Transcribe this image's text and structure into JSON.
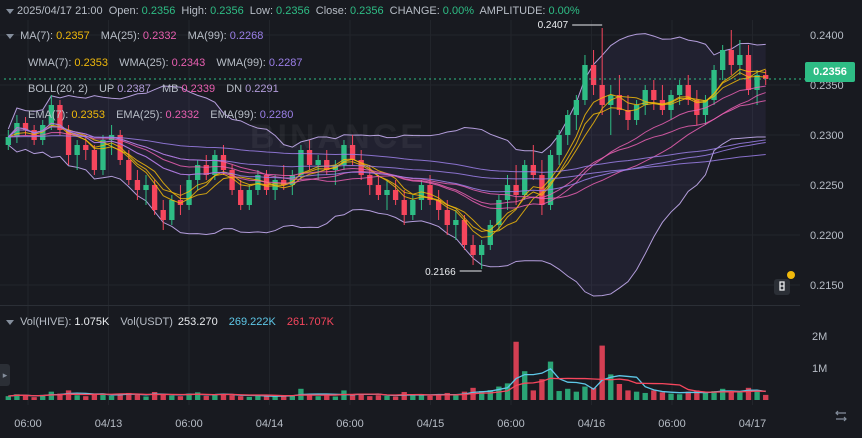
{
  "ohlc_legend": {
    "date": "2025/04/17 21:00",
    "open_label": "Open:",
    "open": "0.2356",
    "high_label": "High:",
    "high": "0.2356",
    "low_label": "Low:",
    "low": "0.2356",
    "close_label": "Close:",
    "close": "0.2356",
    "change_label": "CHANGE:",
    "change": "0.00%",
    "amplitude_label": "AMPLITUDE:",
    "amplitude": "0.00%"
  },
  "ma_legend": {
    "ma7_label": "MA(7):",
    "ma7": "0.2357",
    "ma25_label": "MA(25):",
    "ma25": "0.2332",
    "ma99_label": "MA(99):",
    "ma99": "0.2268"
  },
  "wma_legend": {
    "wma7_label": "WMA(7):",
    "wma7": "0.2353",
    "wma25_label": "WMA(25):",
    "wma25": "0.2343",
    "wma99_label": "WMA(99):",
    "wma99": "0.2287"
  },
  "boll_legend": {
    "boll_label": "BOLL(20, 2)",
    "up_label": "UP",
    "up": "0.2387",
    "mb_label": "MB",
    "mb": "0.2339",
    "dn_label": "DN",
    "dn": "0.2291"
  },
  "ema_legend": {
    "ema7_label": "EMA(7):",
    "ema7": "0.2353",
    "ema25_label": "EMA(25):",
    "ema25": "0.2332",
    "ema99_label": "EMA(99):",
    "ema99": "0.2280"
  },
  "vol_legend": {
    "vol_hive_label": "Vol(HIVE):",
    "vol_hive": "1.075K",
    "vol_usdt_label": "Vol(USDT)",
    "vol_usdt": "253.270",
    "ma5": "269.222K",
    "ma10": "261.707K"
  },
  "watermark": "BINANCE",
  "current_price": "0.2356",
  "colors": {
    "up": "#2ebd85",
    "down": "#f6465d",
    "ma7": "#f0b90b",
    "ma25": "#e95fb1",
    "ma99": "#9b7fe8",
    "boll": "#b39ddb",
    "vol_ma5": "#5ec8e8",
    "vol_ma10": "#f6465d",
    "price_tag": "#2ebd85"
  },
  "icons": {
    "exchange_logo": "binance-logo-icon",
    "settings": "expand-arrows-icon",
    "toggle": "chevron-right-icon"
  },
  "chart_data": {
    "type": "candlestick",
    "price_axis": {
      "ticks": [
        "0.2400",
        "0.2350",
        "0.2300",
        "0.2250",
        "0.2200",
        "0.2150"
      ],
      "range": [
        0.2135,
        0.2415
      ]
    },
    "volume_axis": {
      "ticks": [
        "2M",
        "1M"
      ],
      "range": [
        0,
        2500000
      ]
    },
    "time_axis": {
      "ticks": [
        "06:00",
        "04/13",
        "06:00",
        "04/14",
        "06:00",
        "04/15",
        "06:00",
        "04/16",
        "06:00",
        "04/17"
      ]
    },
    "annotations": {
      "high_label": "0.2407",
      "high_value": 0.2407,
      "low_label": "0.2166",
      "low_value": 0.2166
    },
    "ohlc": [
      [
        0.229,
        0.2305,
        0.2285,
        0.2298
      ],
      [
        0.2298,
        0.232,
        0.2292,
        0.2312
      ],
      [
        0.2312,
        0.2318,
        0.23,
        0.2305
      ],
      [
        0.2305,
        0.231,
        0.229,
        0.2295
      ],
      [
        0.2295,
        0.2315,
        0.229,
        0.231
      ],
      [
        0.231,
        0.234,
        0.2305,
        0.233
      ],
      [
        0.233,
        0.2335,
        0.23,
        0.2305
      ],
      [
        0.2305,
        0.231,
        0.227,
        0.228
      ],
      [
        0.228,
        0.2295,
        0.2265,
        0.229
      ],
      [
        0.229,
        0.23,
        0.2275,
        0.2285
      ],
      [
        0.2285,
        0.229,
        0.226,
        0.2265
      ],
      [
        0.2265,
        0.23,
        0.226,
        0.2295
      ],
      [
        0.2295,
        0.231,
        0.228,
        0.23
      ],
      [
        0.23,
        0.2305,
        0.227,
        0.2275
      ],
      [
        0.2275,
        0.2285,
        0.225,
        0.2255
      ],
      [
        0.2255,
        0.2265,
        0.2235,
        0.2245
      ],
      [
        0.2245,
        0.226,
        0.223,
        0.225
      ],
      [
        0.225,
        0.2255,
        0.222,
        0.2225
      ],
      [
        0.2225,
        0.2235,
        0.2205,
        0.2215
      ],
      [
        0.2215,
        0.224,
        0.221,
        0.2235
      ],
      [
        0.2235,
        0.225,
        0.222,
        0.223
      ],
      [
        0.223,
        0.226,
        0.2225,
        0.2255
      ],
      [
        0.2255,
        0.2275,
        0.2245,
        0.227
      ],
      [
        0.227,
        0.228,
        0.2255,
        0.226
      ],
      [
        0.226,
        0.2285,
        0.2255,
        0.228
      ],
      [
        0.228,
        0.229,
        0.226,
        0.2265
      ],
      [
        0.2265,
        0.227,
        0.224,
        0.2245
      ],
      [
        0.2245,
        0.2255,
        0.2225,
        0.223
      ],
      [
        0.223,
        0.225,
        0.2225,
        0.2245
      ],
      [
        0.2245,
        0.2265,
        0.224,
        0.226
      ],
      [
        0.226,
        0.2265,
        0.224,
        0.2245
      ],
      [
        0.2245,
        0.226,
        0.2235,
        0.2255
      ],
      [
        0.2255,
        0.227,
        0.2245,
        0.225
      ],
      [
        0.225,
        0.2265,
        0.224,
        0.226
      ],
      [
        0.226,
        0.229,
        0.2255,
        0.2285
      ],
      [
        0.2285,
        0.2295,
        0.2265,
        0.227
      ],
      [
        0.227,
        0.228,
        0.2255,
        0.2275
      ],
      [
        0.2275,
        0.2285,
        0.226,
        0.2265
      ],
      [
        0.2265,
        0.2275,
        0.225,
        0.227
      ],
      [
        0.227,
        0.2295,
        0.2265,
        0.229
      ],
      [
        0.229,
        0.23,
        0.227,
        0.2275
      ],
      [
        0.2275,
        0.2285,
        0.2255,
        0.226
      ],
      [
        0.226,
        0.227,
        0.224,
        0.225
      ],
      [
        0.225,
        0.226,
        0.2235,
        0.224
      ],
      [
        0.224,
        0.2255,
        0.2225,
        0.2245
      ],
      [
        0.2245,
        0.2255,
        0.223,
        0.2235
      ],
      [
        0.2235,
        0.2245,
        0.221,
        0.222
      ],
      [
        0.222,
        0.224,
        0.2215,
        0.2235
      ],
      [
        0.2235,
        0.2255,
        0.2225,
        0.225
      ],
      [
        0.225,
        0.226,
        0.223,
        0.2235
      ],
      [
        0.2235,
        0.2245,
        0.2215,
        0.2225
      ],
      [
        0.2225,
        0.2235,
        0.22,
        0.221
      ],
      [
        0.221,
        0.2225,
        0.2195,
        0.2215
      ],
      [
        0.2215,
        0.222,
        0.2185,
        0.219
      ],
      [
        0.219,
        0.22,
        0.217,
        0.218
      ],
      [
        0.218,
        0.2195,
        0.2166,
        0.219
      ],
      [
        0.219,
        0.2215,
        0.2185,
        0.221
      ],
      [
        0.221,
        0.224,
        0.2205,
        0.2235
      ],
      [
        0.2235,
        0.226,
        0.2225,
        0.225
      ],
      [
        0.225,
        0.227,
        0.223,
        0.224
      ],
      [
        0.224,
        0.2275,
        0.2235,
        0.227
      ],
      [
        0.227,
        0.229,
        0.2255,
        0.226
      ],
      [
        0.226,
        0.2275,
        0.222,
        0.223
      ],
      [
        0.223,
        0.2285,
        0.2225,
        0.228
      ],
      [
        0.228,
        0.2305,
        0.227,
        0.23
      ],
      [
        0.23,
        0.2325,
        0.229,
        0.232
      ],
      [
        0.232,
        0.234,
        0.2305,
        0.2335
      ],
      [
        0.2335,
        0.238,
        0.233,
        0.237
      ],
      [
        0.237,
        0.2385,
        0.234,
        0.235
      ],
      [
        0.235,
        0.2407,
        0.232,
        0.233
      ],
      [
        0.233,
        0.235,
        0.23,
        0.234
      ],
      [
        0.234,
        0.236,
        0.232,
        0.2325
      ],
      [
        0.2325,
        0.234,
        0.2305,
        0.2315
      ],
      [
        0.2315,
        0.2335,
        0.231,
        0.233
      ],
      [
        0.233,
        0.235,
        0.232,
        0.2345
      ],
      [
        0.2345,
        0.2355,
        0.2325,
        0.2335
      ],
      [
        0.2335,
        0.235,
        0.232,
        0.2325
      ],
      [
        0.2325,
        0.2345,
        0.2315,
        0.234
      ],
      [
        0.234,
        0.2355,
        0.233,
        0.235
      ],
      [
        0.235,
        0.236,
        0.233,
        0.2335
      ],
      [
        0.2335,
        0.2345,
        0.231,
        0.232
      ],
      [
        0.232,
        0.234,
        0.231,
        0.2335
      ],
      [
        0.2335,
        0.237,
        0.233,
        0.2365
      ],
      [
        0.2365,
        0.239,
        0.2355,
        0.2385
      ],
      [
        0.2385,
        0.2405,
        0.236,
        0.237
      ],
      [
        0.237,
        0.2395,
        0.236,
        0.238
      ],
      [
        0.238,
        0.239,
        0.234,
        0.2345
      ],
      [
        0.2345,
        0.2365,
        0.233,
        0.236
      ],
      [
        0.236,
        0.2365,
        0.235,
        0.2356
      ]
    ],
    "volume": [
      120000,
      180000,
      140000,
      90000,
      160000,
      260000,
      200000,
      300000,
      150000,
      120000,
      170000,
      210000,
      130000,
      190000,
      220000,
      160000,
      110000,
      250000,
      180000,
      140000,
      120000,
      200000,
      240000,
      130000,
      160000,
      190000,
      150000,
      120000,
      100000,
      140000,
      120000,
      110000,
      130000,
      150000,
      350000,
      180000,
      120000,
      140000,
      110000,
      300000,
      160000,
      200000,
      120000,
      150000,
      130000,
      110000,
      250000,
      140000,
      160000,
      130000,
      180000,
      220000,
      150000,
      260000,
      380000,
      280000,
      310000,
      420000,
      520000,
      1820000,
      900000,
      300000,
      650000,
      1200000,
      280000,
      350000,
      260000,
      420000,
      380000,
      1700000,
      800000,
      500000,
      300000,
      260000,
      220000,
      300000,
      240000,
      200000,
      180000,
      260000,
      300000,
      220000,
      280000,
      350000,
      260000,
      240000,
      380000,
      300000,
      160000
    ]
  }
}
